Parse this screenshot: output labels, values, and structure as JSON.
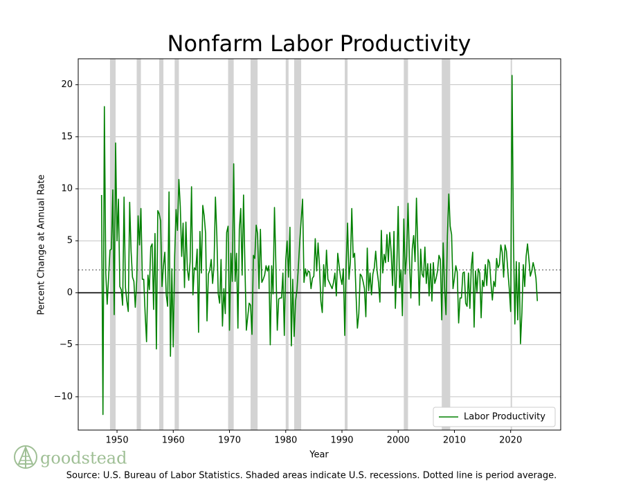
{
  "chart_data": {
    "type": "line",
    "title": "Nonfarm Labor Productivity",
    "xlabel": "Year",
    "ylabel": "Percent Change at Annual Rate",
    "source": "Source: U.S. Bureau of Labor Statistics. Shaded areas indicate U.S. recessions. Dotted line is period average.",
    "logo": "goodstead",
    "legend": "lower right",
    "grid": "y",
    "xlim": [
      1943.1,
      2028.9
    ],
    "ylim": [
      -13.2,
      22.5
    ],
    "xticks": [
      1950,
      1960,
      1970,
      1980,
      1990,
      2000,
      2010,
      2020
    ],
    "yticks": [
      {
        "value": -10,
        "label": "−10"
      },
      {
        "value": -5,
        "label": "−5"
      },
      0,
      5,
      10,
      15,
      20
    ],
    "reference_line": 0,
    "average": 2.2,
    "recession_color": "#d3d3d3",
    "recessions": [
      [
        1948.75,
        1949.75
      ],
      [
        1953.5,
        1954.25
      ],
      [
        1957.5,
        1958.25
      ],
      [
        1960.25,
        1961.0
      ],
      [
        1969.75,
        1970.75
      ],
      [
        1973.75,
        1975.0
      ],
      [
        1980.0,
        1980.5
      ],
      [
        1981.5,
        1982.75
      ],
      [
        1990.5,
        1991.0
      ],
      [
        2001.0,
        2001.75
      ],
      [
        2007.75,
        2009.25
      ],
      [
        2020.0,
        2020.25
      ]
    ],
    "x": [
      1947.25,
      1947.5,
      1947.75,
      1948,
      1948.25,
      1948.5,
      1948.75,
      1949,
      1949.25,
      1949.5,
      1949.75,
      1950,
      1950.25,
      1950.5,
      1950.75,
      1951,
      1951.25,
      1951.5,
      1951.75,
      1952,
      1952.25,
      1952.5,
      1952.75,
      1953,
      1953.25,
      1953.5,
      1953.75,
      1954,
      1954.25,
      1954.5,
      1954.75,
      1955,
      1955.25,
      1955.5,
      1955.75,
      1956,
      1956.25,
      1956.5,
      1956.75,
      1957,
      1957.25,
      1957.5,
      1957.75,
      1958,
      1958.25,
      1958.5,
      1958.75,
      1959,
      1959.25,
      1959.5,
      1959.75,
      1960,
      1960.25,
      1960.5,
      1960.75,
      1961,
      1961.25,
      1961.5,
      1961.75,
      1962,
      1962.25,
      1962.5,
      1962.75,
      1963,
      1963.25,
      1963.5,
      1963.75,
      1964,
      1964.25,
      1964.5,
      1964.75,
      1965,
      1965.25,
      1965.5,
      1965.75,
      1966,
      1966.25,
      1966.5,
      1966.75,
      1967,
      1967.25,
      1967.5,
      1967.75,
      1968,
      1968.25,
      1968.5,
      1968.75,
      1969,
      1969.25,
      1969.5,
      1969.75,
      1970,
      1970.25,
      1970.5,
      1970.75,
      1971,
      1971.25,
      1971.5,
      1971.75,
      1972,
      1972.25,
      1972.5,
      1972.75,
      1973,
      1973.25,
      1973.5,
      1973.75,
      1974,
      1974.25,
      1974.5,
      1974.75,
      1975,
      1975.25,
      1975.5,
      1975.75,
      1976,
      1976.25,
      1976.5,
      1976.75,
      1977,
      1977.25,
      1977.5,
      1977.75,
      1978,
      1978.25,
      1978.5,
      1978.75,
      1979,
      1979.25,
      1979.5,
      1979.75,
      1980,
      1980.25,
      1980.5,
      1980.75,
      1981,
      1981.25,
      1981.5,
      1981.75,
      1982,
      1982.25,
      1982.5,
      1982.75,
      1983,
      1983.25,
      1983.5,
      1983.75,
      1984,
      1984.25,
      1984.5,
      1984.75,
      1985,
      1985.25,
      1985.5,
      1985.75,
      1986,
      1986.25,
      1986.5,
      1986.75,
      1987,
      1987.25,
      1987.5,
      1987.75,
      1988,
      1988.25,
      1988.5,
      1988.75,
      1989,
      1989.25,
      1989.5,
      1989.75,
      1990,
      1990.25,
      1990.5,
      1990.75,
      1991,
      1991.25,
      1991.5,
      1991.75,
      1992,
      1992.25,
      1992.5,
      1992.75,
      1993,
      1993.25,
      1993.5,
      1993.75,
      1994,
      1994.25,
      1994.5,
      1994.75,
      1995,
      1995.25,
      1995.5,
      1995.75,
      1996,
      1996.25,
      1996.5,
      1996.75,
      1997,
      1997.25,
      1997.5,
      1997.75,
      1998,
      1998.25,
      1998.5,
      1998.75,
      1999,
      1999.25,
      1999.5,
      1999.75,
      2000,
      2000.25,
      2000.5,
      2000.75,
      2001,
      2001.25,
      2001.5,
      2001.75,
      2002,
      2002.25,
      2002.5,
      2002.75,
      2003,
      2003.25,
      2003.5,
      2003.75,
      2004,
      2004.25,
      2004.5,
      2004.75,
      2005,
      2005.25,
      2005.5,
      2005.75,
      2006,
      2006.25,
      2006.5,
      2006.75,
      2007,
      2007.25,
      2007.5,
      2007.75,
      2008,
      2008.25,
      2008.5,
      2008.75,
      2009,
      2009.25,
      2009.5,
      2009.75,
      2010,
      2010.25,
      2010.5,
      2010.75,
      2011,
      2011.25,
      2011.5,
      2011.75,
      2012,
      2012.25,
      2012.5,
      2012.75,
      2013,
      2013.25,
      2013.5,
      2013.75,
      2014,
      2014.25,
      2014.5,
      2014.75,
      2015,
      2015.25,
      2015.5,
      2015.75,
      2016,
      2016.25,
      2016.5,
      2016.75,
      2017,
      2017.25,
      2017.5,
      2017.75,
      2018,
      2018.25,
      2018.5,
      2018.75,
      2019,
      2019.25,
      2019.5,
      2019.75,
      2020,
      2020.25,
      2020.5,
      2020.75,
      2021,
      2021.25,
      2021.5,
      2021.75,
      2022,
      2022.25,
      2022.5,
      2022.75,
      2023,
      2023.25,
      2023.5,
      2023.75,
      2024,
      2024.25,
      2024.5,
      2024.75
    ],
    "series": [
      {
        "name": "Labor Productivity",
        "color": "#008000",
        "values": [
          9.4,
          -11.7,
          17.9,
          1.9,
          -1.1,
          1.5,
          4.1,
          4.2,
          9.9,
          -2.1,
          14.4,
          5.0,
          9.0,
          0.6,
          0.3,
          -1.2,
          9.2,
          0.5,
          -0.8,
          -1.8,
          8.7,
          4.0,
          1.5,
          1.1,
          -1.4,
          1.2,
          7.4,
          4.6,
          8.1,
          1.3,
          1.3,
          -2.0,
          -4.7,
          1.7,
          0.3,
          4.4,
          4.7,
          -1.6,
          5.7,
          -5.4,
          7.9,
          7.6,
          6.9,
          0.6,
          2.5,
          3.9,
          -0.2,
          -1.3,
          9.7,
          -6.1,
          2.3,
          -5.2,
          3.5,
          8.0,
          6.0,
          10.9,
          8.3,
          3.5,
          6.7,
          0.5,
          6.8,
          2.4,
          1.2,
          3.0,
          10.2,
          -0.2,
          2.4,
          2.2,
          4.2,
          -3.8,
          5.9,
          1.9,
          8.4,
          7.4,
          5.7,
          -2.7,
          1.8,
          2.2,
          3.2,
          0.9,
          2.6,
          9.2,
          5.5,
          -0.1,
          -1.0,
          3.2,
          -3.2,
          0.4,
          -2.0,
          5.8,
          6.4,
          -3.6,
          3.8,
          1.1,
          12.4,
          1.1,
          3.8,
          -3.4,
          6.1,
          8.1,
          1.7,
          9.4,
          2.5,
          -3.6,
          -2.3,
          -1.0,
          -1.2,
          -4.0,
          3.6,
          3.3,
          6.5,
          5.7,
          0.4,
          6.1,
          1.0,
          1.3,
          1.7,
          2.6,
          2.1,
          2.6,
          -5.0,
          2.6,
          -0.1,
          8.2,
          2.7,
          -3.6,
          -0.6,
          -0.5,
          -0.5,
          1.9,
          -4.1,
          3.1,
          5.0,
          1.5,
          6.3,
          -5.1,
          1.3,
          -4.2,
          -0.8,
          0.3,
          2.5,
          5.0,
          7.0,
          9.0,
          1.0,
          2.3,
          1.6,
          2.1,
          2.0,
          0.4,
          1.4,
          1.6,
          5.2,
          2.1,
          4.8,
          2.6,
          -0.8,
          -1.9,
          2.7,
          0.6,
          4.1,
          1.3,
          1.0,
          0.7,
          0.4,
          1.0,
          1.9,
          -0.3,
          3.8,
          2.6,
          1.5,
          0.8,
          2.3,
          -4.1,
          2.8,
          6.7,
          1.3,
          3.0,
          8.1,
          3.4,
          3.8,
          -0.1,
          -3.4,
          -2.0,
          1.8,
          1.6,
          1.1,
          0.4,
          -2.3,
          4.3,
          0.2,
          1.9,
          -0.2,
          1.8,
          2.4,
          4.0,
          2.1,
          1.0,
          -0.9,
          6.0,
          1.9,
          3.7,
          2.9,
          5.6,
          3.0,
          5.8,
          3.9,
          0.7,
          5.9,
          -1.5,
          2.4,
          8.3,
          0.5,
          2.2,
          -2.2,
          7.1,
          1.8,
          3.5,
          8.6,
          3.2,
          -0.5,
          4.2,
          5.5,
          3.0,
          9.1,
          4.1,
          -1.2,
          4.2,
          1.8,
          1.5,
          4.4,
          0.9,
          2.8,
          -0.3,
          2.8,
          -0.8,
          2.9,
          0.9,
          1.4,
          2.1,
          3.6,
          3.2,
          -2.6,
          4.8,
          0.5,
          -2.1,
          5.5,
          9.5,
          6.4,
          5.6,
          0.4,
          1.4,
          2.6,
          2.0,
          -2.9,
          -0.5,
          -0.5,
          1.9,
          2.0,
          -1.0,
          -1.3,
          1.9,
          -1.5,
          2.5,
          3.9,
          -3.3,
          2.1,
          0.1,
          2.3,
          1.9,
          -2.4,
          1.2,
          0.6,
          2.7,
          0.7,
          3.2,
          2.9,
          0.9,
          -0.7,
          1.1,
          0.6,
          3.3,
          2.4,
          2.7,
          4.6,
          3.9,
          1.5,
          4.6,
          4.0,
          2.1,
          0.4,
          -1.8,
          20.9,
          5.1,
          -3.0,
          3.0,
          -2.6,
          2.9,
          -4.9,
          -1.9,
          2.7,
          0.6,
          3.5,
          4.7,
          3.2,
          1.6,
          2.1,
          2.9,
          2.3,
          1.4,
          -0.8
        ]
      }
    ]
  }
}
